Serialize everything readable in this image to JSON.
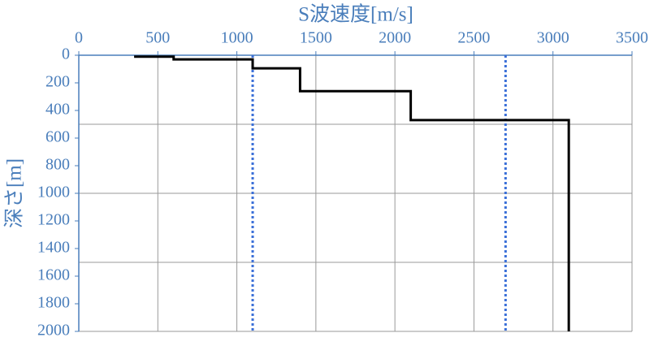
{
  "chart_data": {
    "type": "line",
    "x_label": "S波速度[m/s]",
    "y_label": "深さ[m]",
    "xlim": [
      0,
      3500
    ],
    "ylim": [
      0,
      2000
    ],
    "y_inverted": true,
    "xticks": [
      0,
      500,
      1000,
      1500,
      2000,
      2500,
      3000,
      3500
    ],
    "yticks": [
      0,
      200,
      400,
      600,
      800,
      1000,
      1200,
      1400,
      1600,
      1800,
      2000
    ],
    "ygrid": [
      500,
      1000,
      1500,
      2000
    ],
    "grid": true,
    "series": [
      {
        "color": "#000000",
        "x": [
          350,
          600,
          600,
          1100,
          1100,
          1400,
          1400,
          2100,
          2100,
          3100,
          3100
        ],
        "values": [
          10,
          10,
          30,
          30,
          95,
          95,
          260,
          260,
          470,
          470,
          2000
        ]
      }
    ],
    "reference_lines": {
      "color": "#3a6fd8",
      "x": [
        1100,
        2700
      ]
    }
  }
}
